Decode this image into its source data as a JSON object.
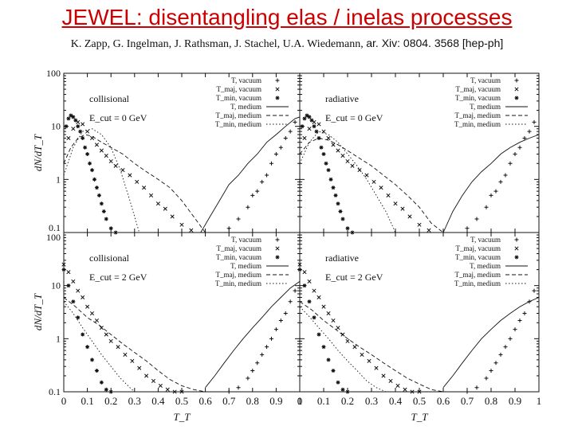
{
  "header": {
    "title": "JEWEL: disentangling elas / inelas processes",
    "authors": "K. Zapp, G. Ingelman, J. Rathsman, J. Stachel, U.A. Wiedemann,",
    "arxiv": "ar. Xiv: 0804. 3568 [hep-ph]"
  },
  "colors": {
    "title": "#cc0000",
    "ink": "#111111"
  },
  "chart_data": {
    "type": "scatter",
    "xlabel": "T_T",
    "ylabel": "dN/dT_T",
    "xlim": [
      0,
      1
    ],
    "ylim_log": [
      0.1,
      100
    ],
    "x_ticks_left": [
      "0",
      "0.1",
      "0.2",
      "0.3",
      "0.4",
      "0.5",
      "0.6"
    ],
    "x_ticks_right": [
      "0.7",
      "0.8",
      "0.9",
      "1"
    ],
    "y_ticks": [
      "100",
      "10",
      "1",
      "0.1"
    ],
    "legend_entries": [
      {
        "label": "T, vacuum",
        "marker": "+"
      },
      {
        "label": "T_maj, vacuum",
        "marker": "×"
      },
      {
        "label": "T_min, vacuum",
        "marker": "*"
      },
      {
        "label": "T, medium",
        "marker": "solid"
      },
      {
        "label": "T_maj, medium",
        "marker": "dashed"
      },
      {
        "label": "T_min, medium",
        "marker": "dotted"
      }
    ],
    "panels": [
      {
        "name": "collisional",
        "label": "collisional",
        "ecut": "E_cut = 0 GeV",
        "series": [
          {
            "name": "T, vacuum",
            "x": [
              0.7,
              0.74,
              0.78,
              0.8,
              0.82,
              0.84,
              0.86,
              0.88,
              0.9,
              0.92,
              0.94,
              0.96,
              0.98
            ],
            "y": [
              0.12,
              0.18,
              0.3,
              0.5,
              0.6,
              0.9,
              1.2,
              2,
              3,
              4,
              6,
              8,
              12
            ]
          },
          {
            "name": "T_maj, vacuum",
            "x": [
              0.02,
              0.04,
              0.06,
              0.08,
              0.1,
              0.12,
              0.14,
              0.16,
              0.18,
              0.2,
              0.22,
              0.25,
              0.28,
              0.31,
              0.34,
              0.37,
              0.4,
              0.43,
              0.46,
              0.5,
              0.54
            ],
            "y": [
              6,
              9,
              12,
              11,
              8,
              6,
              4.5,
              3.5,
              2.8,
              2.2,
              1.8,
              1.5,
              1.2,
              0.9,
              0.7,
              0.5,
              0.35,
              0.28,
              0.2,
              0.14,
              0.11
            ]
          },
          {
            "name": "T_min, vacuum",
            "x": [
              0.01,
              0.02,
              0.03,
              0.04,
              0.05,
              0.06,
              0.07,
              0.08,
              0.09,
              0.1,
              0.11,
              0.12,
              0.13,
              0.14,
              0.15,
              0.16,
              0.17,
              0.18,
              0.2,
              0.22
            ],
            "y": [
              10,
              14,
              16,
              15,
              13,
              10,
              8,
              6,
              4,
              3,
              2,
              1.5,
              1,
              0.7,
              0.5,
              0.35,
              0.25,
              0.18,
              0.12,
              0.1
            ]
          },
          {
            "name": "T, medium",
            "x": [
              0.58,
              0.62,
              0.66,
              0.7,
              0.74,
              0.78,
              0.82,
              0.86,
              0.9,
              0.94,
              0.98,
              1.0
            ],
            "y": [
              0.1,
              0.2,
              0.4,
              0.8,
              1.2,
              2,
              3,
              5,
              7,
              10,
              14,
              15
            ]
          },
          {
            "name": "T_maj, medium",
            "x": [
              0.0,
              0.03,
              0.06,
              0.09,
              0.12,
              0.16,
              0.2,
              0.25,
              0.3,
              0.35,
              0.4,
              0.45,
              0.5,
              0.55,
              0.6
            ],
            "y": [
              2,
              4,
              6,
              7,
              6.5,
              5,
              4,
              3,
              2,
              1.4,
              1,
              0.7,
              0.4,
              0.2,
              0.1
            ]
          },
          {
            "name": "T_min, medium",
            "x": [
              0.0,
              0.04,
              0.08,
              0.12,
              0.16,
              0.2,
              0.24,
              0.28,
              0.3,
              0.32
            ],
            "y": [
              1.2,
              4,
              8,
              9,
              7,
              4,
              1.5,
              0.4,
              0.2,
              0.1
            ]
          }
        ]
      },
      {
        "name": "radiative",
        "label": "radiative",
        "ecut": "E_cut = 0 GeV",
        "series": [
          {
            "name": "T, vacuum",
            "x": [
              0.7,
              0.74,
              0.78,
              0.8,
              0.82,
              0.84,
              0.86,
              0.88,
              0.9,
              0.92,
              0.94,
              0.96,
              0.98
            ],
            "y": [
              0.12,
              0.18,
              0.3,
              0.5,
              0.6,
              0.9,
              1.2,
              2,
              3,
              4,
              6,
              8,
              12
            ]
          },
          {
            "name": "T_maj, vacuum",
            "x": [
              0.02,
              0.04,
              0.06,
              0.08,
              0.1,
              0.12,
              0.14,
              0.16,
              0.18,
              0.2,
              0.22,
              0.25,
              0.28,
              0.31,
              0.34,
              0.37,
              0.4,
              0.43,
              0.46,
              0.5,
              0.54
            ],
            "y": [
              6,
              9,
              12,
              11,
              8,
              6,
              4.5,
              3.5,
              2.8,
              2.2,
              1.8,
              1.5,
              1.2,
              0.9,
              0.7,
              0.5,
              0.35,
              0.28,
              0.2,
              0.14,
              0.11
            ]
          },
          {
            "name": "T_min, vacuum",
            "x": [
              0.01,
              0.02,
              0.03,
              0.04,
              0.05,
              0.06,
              0.07,
              0.08,
              0.09,
              0.1,
              0.11,
              0.12,
              0.13,
              0.14,
              0.15,
              0.16,
              0.17,
              0.18,
              0.2,
              0.22
            ],
            "y": [
              10,
              14,
              16,
              15,
              13,
              10,
              8,
              6,
              4,
              3,
              2,
              1.5,
              1,
              0.7,
              0.5,
              0.35,
              0.25,
              0.18,
              0.12,
              0.1
            ]
          },
          {
            "name": "T, medium",
            "x": [
              0.6,
              0.64,
              0.68,
              0.72,
              0.76,
              0.8,
              0.84,
              0.88,
              0.92,
              0.96,
              1.0
            ],
            "y": [
              0.1,
              0.25,
              0.5,
              0.9,
              1.4,
              2,
              3,
              4,
              5,
              6,
              7
            ]
          },
          {
            "name": "T_maj, medium",
            "x": [
              0.0,
              0.04,
              0.08,
              0.12,
              0.16,
              0.2,
              0.25,
              0.3,
              0.35,
              0.4,
              0.45,
              0.5,
              0.55,
              0.6
            ],
            "y": [
              3,
              5,
              6,
              5.5,
              4.5,
              3.5,
              2.5,
              1.8,
              1.2,
              0.8,
              0.5,
              0.3,
              0.15,
              0.1
            ]
          },
          {
            "name": "T_min, medium",
            "x": [
              0.0,
              0.04,
              0.08,
              0.12,
              0.16,
              0.2,
              0.24,
              0.28,
              0.32,
              0.36,
              0.4
            ],
            "y": [
              2,
              5,
              8,
              7,
              5,
              3,
              1.8,
              1,
              0.5,
              0.25,
              0.1
            ]
          }
        ]
      },
      {
        "name": "collisional",
        "label": "collisional",
        "ecut": "E_cut = 2 GeV",
        "series": [
          {
            "name": "T, vacuum",
            "x": [
              0.7,
              0.74,
              0.78,
              0.8,
              0.82,
              0.84,
              0.86,
              0.88,
              0.9,
              0.92,
              0.94,
              0.96,
              0.98
            ],
            "y": [
              0.1,
              0.12,
              0.18,
              0.25,
              0.35,
              0.5,
              0.7,
              1,
              1.5,
              2.2,
              3,
              5,
              8
            ]
          },
          {
            "name": "T_maj, vacuum",
            "x": [
              0.0,
              0.02,
              0.04,
              0.06,
              0.08,
              0.1,
              0.12,
              0.14,
              0.16,
              0.18,
              0.2,
              0.23,
              0.26,
              0.29,
              0.32,
              0.35,
              0.38,
              0.41,
              0.44,
              0.47,
              0.5
            ],
            "y": [
              25,
              18,
              12,
              8,
              6,
              4,
              3,
              2.2,
              1.6,
              1.2,
              0.9,
              0.7,
              0.5,
              0.38,
              0.28,
              0.2,
              0.16,
              0.13,
              0.11,
              0.1,
              0.1
            ]
          },
          {
            "name": "T_min, vacuum",
            "x": [
              0.0,
              0.02,
              0.04,
              0.06,
              0.08,
              0.1,
              0.12,
              0.14,
              0.16,
              0.18,
              0.2
            ],
            "y": [
              20,
              10,
              5,
              2.5,
              1.2,
              0.7,
              0.4,
              0.25,
              0.15,
              0.11,
              0.1
            ]
          },
          {
            "name": "T, medium",
            "x": [
              0.6,
              0.64,
              0.68,
              0.72,
              0.76,
              0.8,
              0.84,
              0.88,
              0.92,
              0.96,
              1.0
            ],
            "y": [
              0.12,
              0.2,
              0.35,
              0.6,
              1,
              1.6,
              2.5,
              4,
              6,
              9,
              12
            ]
          },
          {
            "name": "T_maj, medium",
            "x": [
              0.0,
              0.05,
              0.1,
              0.15,
              0.2,
              0.25,
              0.3,
              0.35,
              0.4,
              0.45,
              0.5,
              0.55,
              0.6
            ],
            "y": [
              6,
              4,
              2.5,
              1.8,
              1.2,
              0.8,
              0.55,
              0.38,
              0.25,
              0.17,
              0.13,
              0.11,
              0.1
            ]
          },
          {
            "name": "T_min, medium",
            "x": [
              0.0,
              0.04,
              0.08,
              0.12,
              0.16,
              0.2,
              0.24,
              0.28,
              0.3
            ],
            "y": [
              5,
              3,
              1.6,
              0.9,
              0.5,
              0.3,
              0.18,
              0.12,
              0.1
            ]
          }
        ]
      },
      {
        "name": "radiative",
        "label": "radiative",
        "ecut": "E_cut = 2 GeV",
        "series": [
          {
            "name": "T, vacuum",
            "x": [
              0.7,
              0.74,
              0.78,
              0.8,
              0.82,
              0.84,
              0.86,
              0.88,
              0.9,
              0.92,
              0.94,
              0.96,
              0.98
            ],
            "y": [
              0.1,
              0.12,
              0.18,
              0.25,
              0.35,
              0.5,
              0.7,
              1,
              1.5,
              2.2,
              3,
              5,
              8
            ]
          },
          {
            "name": "T_maj, vacuum",
            "x": [
              0.0,
              0.02,
              0.04,
              0.06,
              0.08,
              0.1,
              0.12,
              0.14,
              0.16,
              0.18,
              0.2,
              0.23,
              0.26,
              0.29,
              0.32,
              0.35,
              0.38,
              0.41,
              0.44,
              0.47,
              0.5
            ],
            "y": [
              25,
              18,
              12,
              8,
              6,
              4,
              3,
              2.2,
              1.6,
              1.2,
              0.9,
              0.7,
              0.5,
              0.38,
              0.28,
              0.2,
              0.16,
              0.13,
              0.11,
              0.1,
              0.1
            ]
          },
          {
            "name": "T_min, vacuum",
            "x": [
              0.0,
              0.02,
              0.04,
              0.06,
              0.08,
              0.1,
              0.12,
              0.14,
              0.16,
              0.18,
              0.2
            ],
            "y": [
              20,
              10,
              5,
              2.5,
              1.2,
              0.7,
              0.4,
              0.25,
              0.15,
              0.11,
              0.1
            ]
          },
          {
            "name": "T, medium",
            "x": [
              0.6,
              0.64,
              0.68,
              0.72,
              0.76,
              0.8,
              0.84,
              0.88,
              0.92,
              0.96,
              1.0
            ],
            "y": [
              0.12,
              0.2,
              0.35,
              0.6,
              1,
              1.5,
              2.2,
              3,
              4,
              5,
              6
            ]
          },
          {
            "name": "T_maj, medium",
            "x": [
              0.0,
              0.05,
              0.1,
              0.15,
              0.2,
              0.25,
              0.3,
              0.35,
              0.4,
              0.45,
              0.5,
              0.55,
              0.6
            ],
            "y": [
              5,
              3.5,
              2.2,
              1.5,
              1,
              0.7,
              0.5,
              0.35,
              0.25,
              0.18,
              0.14,
              0.11,
              0.1
            ]
          },
          {
            "name": "T_min, medium",
            "x": [
              0.0,
              0.04,
              0.08,
              0.12,
              0.16,
              0.2,
              0.24,
              0.28,
              0.32,
              0.36
            ],
            "y": [
              4,
              2.6,
              1.6,
              1,
              0.6,
              0.38,
              0.25,
              0.16,
              0.12,
              0.1
            ]
          }
        ]
      }
    ]
  }
}
